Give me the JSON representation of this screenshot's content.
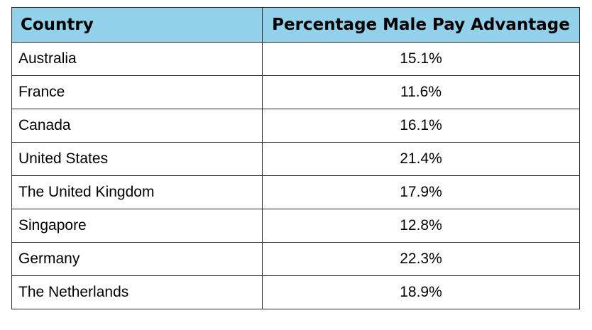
{
  "chart_data": {
    "type": "table",
    "columns": [
      "Country",
      "Percentage Male Pay Advantage"
    ],
    "rows": [
      [
        "Australia",
        "15.1%"
      ],
      [
        "France",
        "11.6%"
      ],
      [
        "Canada",
        "16.1%"
      ],
      [
        "United States",
        "21.4%"
      ],
      [
        "The United Kingdom",
        "17.9%"
      ],
      [
        "Singapore",
        "12.8%"
      ],
      [
        "Germany",
        "22.3%"
      ],
      [
        "The Netherlands",
        "18.9%"
      ]
    ]
  },
  "colors": {
    "header_bg": "#92d1ea",
    "border": "#2b2b2b",
    "text": "#000000"
  }
}
